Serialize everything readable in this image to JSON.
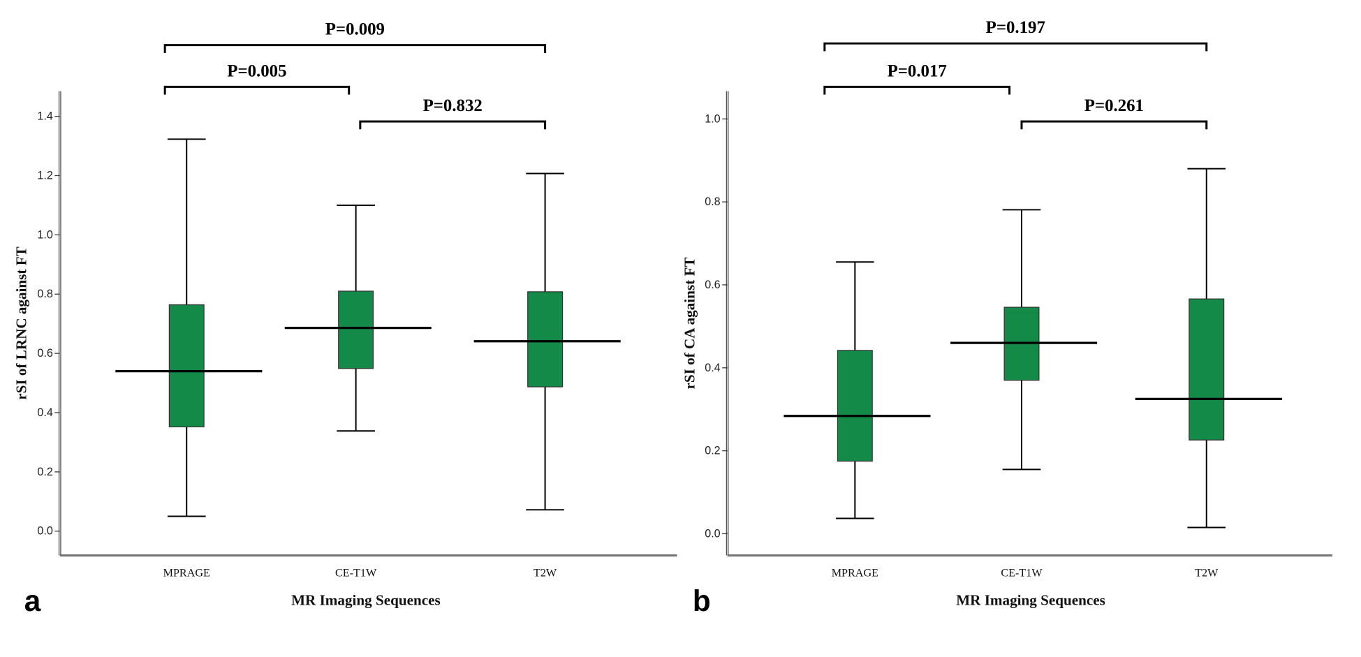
{
  "chart_data": [
    {
      "type": "box",
      "panel_label": "a",
      "xlabel": "MR Imaging Sequences",
      "ylabel": "rSI of LRNC against FT",
      "categories": [
        "MPRAGE",
        "CE-T1W",
        "T2W"
      ],
      "yticks": [
        "0.0",
        "0.2",
        "0.4",
        "0.6",
        "0.8",
        "1.0",
        "1.2",
        "1.4"
      ],
      "ylim": [
        -0.06,
        1.48
      ],
      "box_color": "#138a48",
      "boxes": [
        {
          "min": 0.05,
          "q1": 0.352,
          "median": 0.54,
          "q3": 0.764,
          "max": 1.323
        },
        {
          "min": 0.338,
          "q1": 0.549,
          "median": 0.686,
          "q3": 0.81,
          "max": 1.1
        },
        {
          "min": 0.072,
          "q1": 0.487,
          "median": 0.641,
          "q3": 0.808,
          "max": 1.207
        }
      ],
      "comparisons": [
        {
          "from": 0,
          "to": 1,
          "label": "P=0.005"
        },
        {
          "from": 0,
          "to": 2,
          "label": "P=0.009"
        },
        {
          "from": 1,
          "to": 2,
          "label": "P=0.832"
        }
      ]
    },
    {
      "type": "box",
      "panel_label": "b",
      "xlabel": "MR Imaging Sequences",
      "ylabel": "rSI of CA against FT",
      "categories": [
        "MPRAGE",
        "CE-T1W",
        "T2W"
      ],
      "yticks": [
        "0.0",
        "0.2",
        "0.4",
        "0.6",
        "0.8",
        "1.0"
      ],
      "ylim": [
        -0.05,
        1.06
      ],
      "box_color": "#138a48",
      "boxes": [
        {
          "min": 0.037,
          "q1": 0.175,
          "median": 0.284,
          "q3": 0.442,
          "max": 0.655
        },
        {
          "min": 0.155,
          "q1": 0.37,
          "median": 0.46,
          "q3": 0.546,
          "max": 0.781
        },
        {
          "min": 0.015,
          "q1": 0.226,
          "median": 0.325,
          "q3": 0.566,
          "max": 0.88
        }
      ],
      "comparisons": [
        {
          "from": 0,
          "to": 1,
          "label": "P=0.017"
        },
        {
          "from": 0,
          "to": 2,
          "label": "P=0.197"
        },
        {
          "from": 1,
          "to": 2,
          "label": "P=0.261"
        }
      ]
    }
  ]
}
